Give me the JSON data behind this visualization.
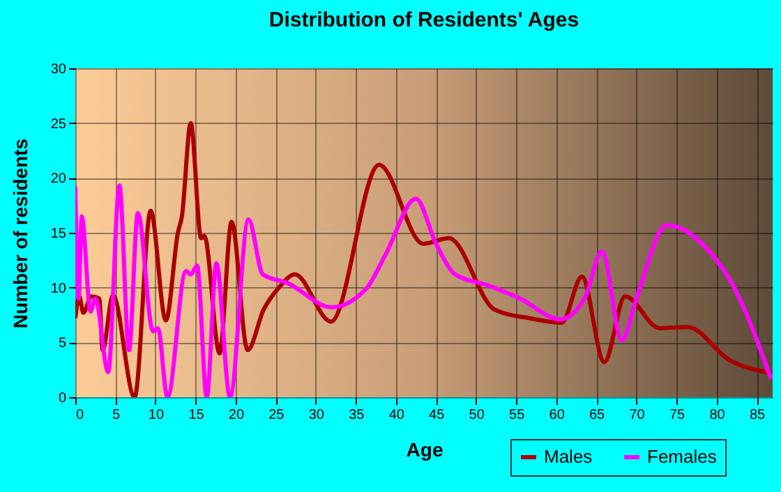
{
  "chart_data": {
    "type": "line",
    "title": "Distribution of Residents' Ages",
    "xlabel": "Age",
    "ylabel": "Number of residents",
    "xlim": [
      0,
      87
    ],
    "xticks": [
      0,
      5,
      10,
      15,
      20,
      25,
      30,
      35,
      40,
      45,
      50,
      55,
      60,
      65,
      70,
      75,
      80,
      85
    ],
    "ylim": [
      0,
      30
    ],
    "yticks": [
      0,
      5,
      10,
      15,
      20,
      25,
      30
    ],
    "grid": true,
    "legend": "bottom right",
    "series": [
      {
        "name": "Males",
        "color": "#aa0000",
        "x": [
          0,
          0.5,
          1,
          2,
          3,
          3.4,
          4.7,
          7.4,
          9.4,
          11.3,
          12.8,
          13.3,
          14.4,
          15.7,
          16.1,
          18,
          19.5,
          21.5,
          23.5,
          25.4,
          27.4,
          31.9,
          37.9,
          43.4,
          46.6,
          52.3,
          56.7,
          60.7,
          63.2,
          66,
          68.6,
          72.9,
          76.4,
          81.6,
          86.8
        ],
        "values": [
          7.2,
          9.2,
          7.7,
          9.2,
          9,
          4.3,
          9.3,
          0,
          17,
          7,
          15,
          16.5,
          25,
          14.5,
          14.7,
          4,
          16,
          4.3,
          8,
          10,
          11.2,
          6.9,
          21.2,
          14,
          14.5,
          8,
          7.2,
          6.8,
          11,
          3.2,
          9.2,
          6.3,
          6.4,
          3.4,
          2.2
        ]
      },
      {
        "name": "Females",
        "color": "#ff00ff",
        "x": [
          0,
          0.4,
          0.8,
          1.9,
          2.5,
          4.1,
          5.5,
          6.7,
          7.8,
          9.7,
          10.3,
          11.5,
          13.8,
          14.4,
          15.2,
          16.4,
          17.6,
          19.3,
          21.6,
          23.4,
          26.5,
          32,
          36.4,
          38.7,
          42.5,
          45,
          47.4,
          51.5,
          55.5,
          60.5,
          63.6,
          65.7,
          68.2,
          70,
          73.8,
          78.2,
          82.2,
          86.8
        ],
        "values": [
          19.2,
          9,
          16.5,
          7.8,
          9,
          2.3,
          19.3,
          4.3,
          16.8,
          6,
          6.3,
          0,
          11.5,
          11.2,
          12,
          0,
          12.2,
          0,
          16.2,
          11.2,
          10.4,
          8.2,
          10,
          13,
          18.1,
          14,
          11.2,
          10.2,
          9,
          7.1,
          9.1,
          13.3,
          5.2,
          9,
          15.7,
          14,
          10,
          1.7
        ]
      }
    ]
  }
}
